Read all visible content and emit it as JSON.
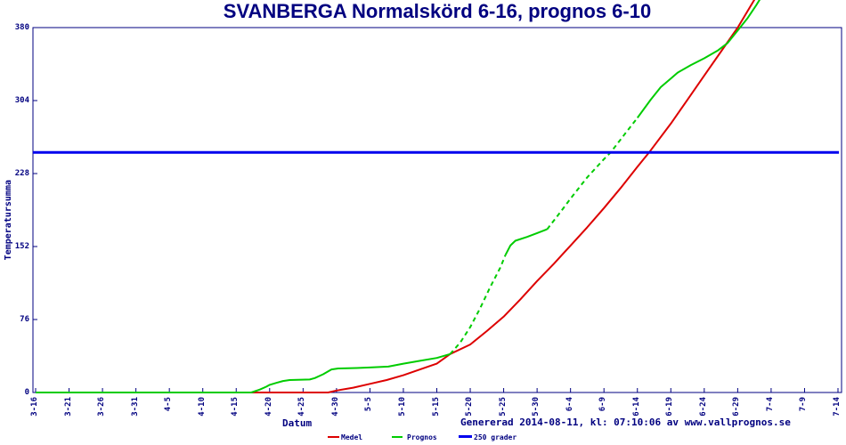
{
  "title": "SVANBERGA Normalskörd 6-16, prognos 6-10",
  "footer": "Genererad 2014-08-11, kl: 07:10:06 av www.vallprognos.se",
  "colors": {
    "navy_text": "#000080",
    "axis": "#000080",
    "medel_red": "#dd0000",
    "prognos_green": "#00cc00",
    "grader_blue": "#0000ee",
    "background": "#ffffff"
  },
  "chart_data": {
    "type": "line",
    "title": "SVANBERGA Normalskörd 6-16, prognos 6-10",
    "xlabel": "Datum",
    "ylabel": "Temperatursumma",
    "footer": "Genererad 2014-08-11, kl: 07:10:06 av www.vallprognos.se",
    "x_tick_labels": [
      "3-16",
      "3-21",
      "3-26",
      "3-31",
      "4-5",
      "4-10",
      "4-15",
      "4-20",
      "4-25",
      "4-30",
      "5-5",
      "5-10",
      "5-15",
      "5-20",
      "5-25",
      "5-30",
      "6-4",
      "6-9",
      "6-14",
      "6-19",
      "6-24",
      "6-29",
      "7-4",
      "7-9",
      "7-14"
    ],
    "x_tick_unit_days": 5,
    "y_ticks": [
      0,
      76,
      152,
      228,
      304,
      380
    ],
    "ylim": [
      0,
      380
    ],
    "grid": false,
    "legend_position": "bottom-center",
    "legend": [
      {
        "label": "Medel",
        "color": "#dd0000"
      },
      {
        "label": "Prognos",
        "color": "#00cc00"
      },
      {
        "label": "250 grader",
        "color": "#0000ee"
      }
    ],
    "threshold_line": {
      "name": "250 grader",
      "value": 250
    },
    "crossings": {
      "medel_reaches_250": "6-16",
      "prognos_reaches_250": "6-10"
    },
    "series": [
      {
        "name": "Medel",
        "color": "#dd0000",
        "width": 2,
        "segments": [
          {
            "style": "solid",
            "points": [
              [
                0,
                0
              ],
              [
                6.45,
                0
              ],
              [
                8.75,
                0
              ],
              [
                9.0,
                2
              ],
              [
                9.5,
                5
              ],
              [
                10.0,
                9
              ],
              [
                10.5,
                13
              ],
              [
                11.0,
                18
              ],
              [
                11.5,
                24
              ],
              [
                12.0,
                30
              ],
              [
                12.4,
                40
              ],
              [
                13.0,
                50
              ],
              [
                13.5,
                64
              ],
              [
                14.0,
                79
              ],
              [
                14.5,
                97
              ],
              [
                15.0,
                116
              ],
              [
                15.5,
                134
              ],
              [
                16.0,
                153
              ],
              [
                16.5,
                172
              ],
              [
                17.0,
                192
              ],
              [
                17.5,
                213
              ],
              [
                18.0,
                235
              ],
              [
                18.35,
                250
              ],
              [
                19.0,
                280
              ],
              [
                19.5,
                305
              ],
              [
                20.0,
                330
              ],
              [
                20.5,
                355
              ],
              [
                21.0,
                380
              ],
              [
                21.5,
                409
              ],
              [
                21.62,
                416
              ]
            ]
          }
        ]
      },
      {
        "name": "Prognos",
        "color": "#00cc00",
        "width": 2,
        "segments": [
          {
            "style": "solid",
            "points": [
              [
                0,
                0
              ],
              [
                6.45,
                0
              ],
              [
                6.7,
                3
              ],
              [
                6.9,
                6
              ],
              [
                7.0,
                8
              ],
              [
                7.2,
                10
              ],
              [
                7.4,
                12
              ],
              [
                7.6,
                13
              ],
              [
                8.2,
                13.5
              ],
              [
                8.35,
                15
              ],
              [
                8.6,
                19
              ],
              [
                8.85,
                24
              ],
              [
                9.05,
                25
              ],
              [
                9.6,
                25.5
              ],
              [
                10.0,
                26
              ],
              [
                10.55,
                27
              ],
              [
                11.0,
                30
              ],
              [
                11.5,
                33
              ],
              [
                12.0,
                36
              ],
              [
                12.4,
                40
              ]
            ]
          },
          {
            "style": "dashed",
            "points": [
              [
                12.4,
                40
              ],
              [
                12.7,
                52
              ],
              [
                13.0,
                68
              ],
              [
                13.3,
                88
              ],
              [
                13.6,
                110
              ],
              [
                13.9,
                130
              ],
              [
                14.05,
                143
              ]
            ]
          },
          {
            "style": "solid",
            "points": [
              [
                14.05,
                143
              ],
              [
                14.2,
                153
              ],
              [
                14.35,
                158
              ],
              [
                14.7,
                162
              ],
              [
                15.0,
                166
              ],
              [
                15.3,
                170
              ]
            ]
          },
          {
            "style": "dashed",
            "points": [
              [
                15.3,
                170
              ],
              [
                15.7,
                188
              ],
              [
                16.0,
                202
              ],
              [
                16.5,
                224
              ],
              [
                17.0,
                243
              ],
              [
                17.2,
                250
              ],
              [
                17.6,
                268
              ],
              [
                18.0,
                286
              ]
            ]
          },
          {
            "style": "solid",
            "points": [
              [
                18.0,
                286
              ],
              [
                18.4,
                305
              ],
              [
                18.7,
                318
              ],
              [
                19.0,
                327
              ],
              [
                19.2,
                333
              ],
              [
                19.6,
                341
              ],
              [
                20.0,
                348
              ],
              [
                20.4,
                356
              ],
              [
                20.7,
                364
              ],
              [
                21.0,
                377
              ],
              [
                21.3,
                390
              ],
              [
                21.55,
                403
              ],
              [
                21.78,
                416
              ]
            ]
          }
        ]
      },
      {
        "name": "250 grader",
        "color": "#0000ee",
        "width": 3,
        "segments": [
          {
            "style": "solid",
            "points": [
              [
                -0.08,
                250
              ],
              [
                24.03,
                250
              ]
            ]
          }
        ]
      }
    ]
  }
}
